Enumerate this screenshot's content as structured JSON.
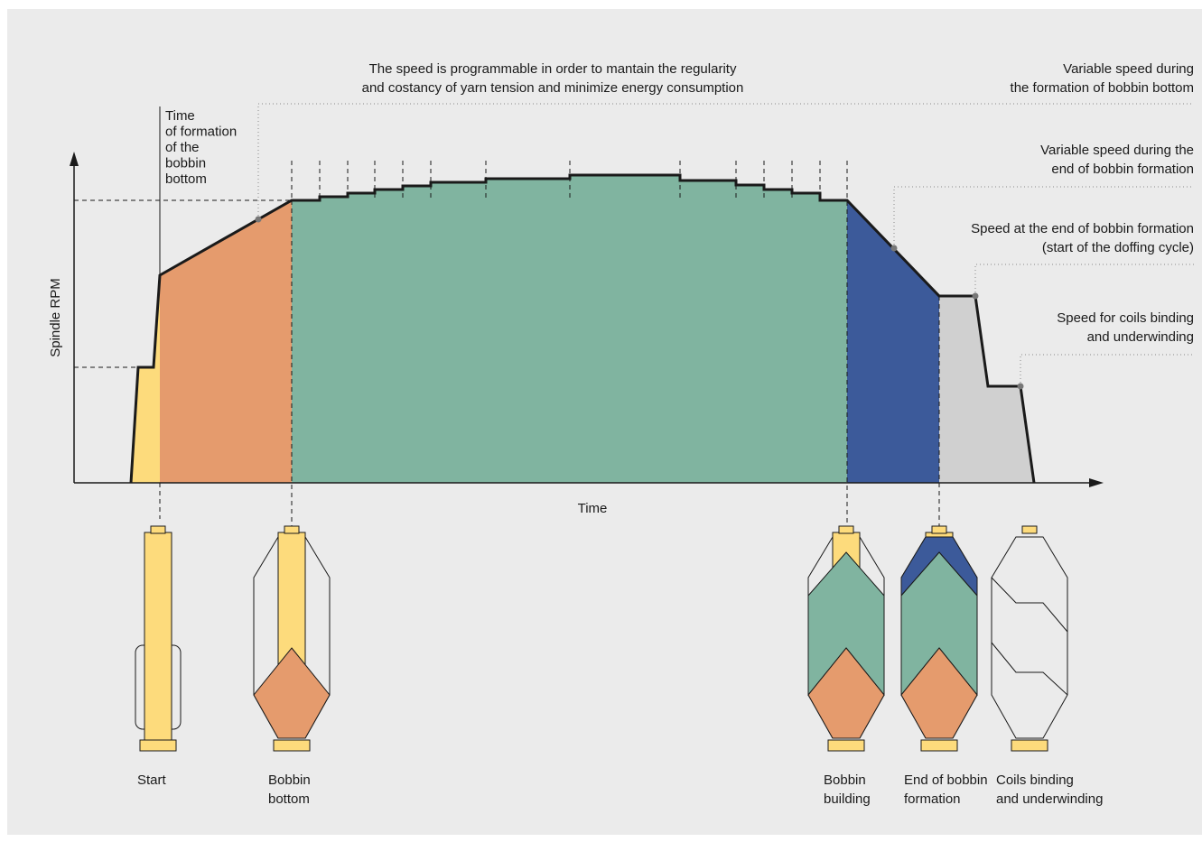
{
  "axes": {
    "y_label": "Spindle RPM",
    "x_label": "Time"
  },
  "annotations": [
    {
      "lines": [
        "Time",
        "of formation",
        "of the",
        "bobbin",
        "bottom"
      ]
    },
    {
      "lines": [
        "The speed is programmable in order to mantain the regularity",
        "and costancy of yarn tension and minimize energy consumption"
      ]
    },
    {
      "lines": [
        "Variable speed during",
        "the formation of bobbin bottom"
      ]
    },
    {
      "lines": [
        "Variable speed during the",
        "end of bobbin formation"
      ]
    },
    {
      "lines": [
        "Speed at the end of bobbin formation",
        "(start of the doffing cycle)"
      ]
    },
    {
      "lines": [
        "Speed for coils binding",
        "and underwinding"
      ]
    }
  ],
  "stages": [
    {
      "lines": [
        "Start"
      ]
    },
    {
      "lines": [
        "Bobbin",
        "bottom"
      ]
    },
    {
      "lines": [
        "Bobbin",
        "building"
      ]
    },
    {
      "lines": [
        "End of bobbin",
        "formation"
      ]
    },
    {
      "lines": [
        "Coils binding",
        "and underwinding"
      ]
    }
  ]
}
